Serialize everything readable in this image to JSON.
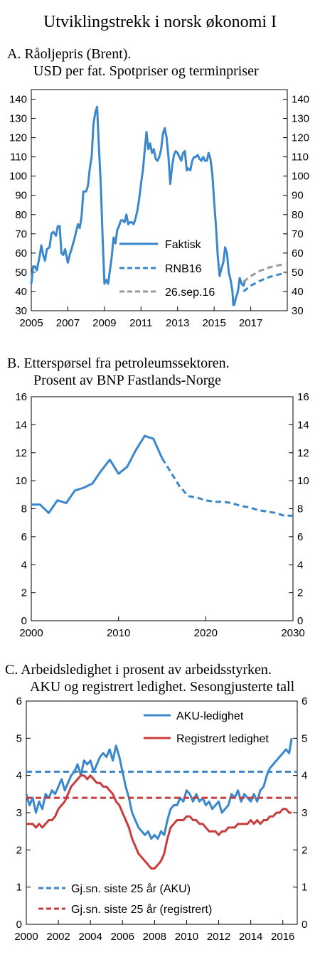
{
  "figure": {
    "title": "Utviklingstrekk i norsk økonomi I"
  },
  "colors": {
    "blue": "#3a87cc",
    "red": "#c83c3c",
    "gray": "#9a9a9a"
  },
  "chart_data": [
    {
      "id": "A",
      "type": "line",
      "title_line1": "A.  Råoljepris (Brent).",
      "title_line2": "USD per fat. Spotpriser og terminpriser",
      "xlim": [
        2005,
        2019
      ],
      "ylim": [
        30,
        145
      ],
      "xticks": [
        2005,
        2007,
        2009,
        2011,
        2013,
        2015,
        2017
      ],
      "yticks": [
        30,
        40,
        50,
        60,
        70,
        80,
        90,
        100,
        110,
        120,
        130,
        140
      ],
      "legend_placement": "bottom-right",
      "series": [
        {
          "name": "Faktisk",
          "style": "solid",
          "color": "#3a87cc",
          "x": [
            2005.0,
            2005.1,
            2005.2,
            2005.3,
            2005.45,
            2005.55,
            2005.65,
            2005.75,
            2005.85,
            2006.0,
            2006.1,
            2006.2,
            2006.35,
            2006.45,
            2006.55,
            2006.65,
            2006.75,
            2006.85,
            2007.0,
            2007.1,
            2007.2,
            2007.35,
            2007.45,
            2007.55,
            2007.65,
            2007.75,
            2007.85,
            2008.0,
            2008.1,
            2008.2,
            2008.3,
            2008.4,
            2008.5,
            2008.6,
            2008.7,
            2008.8,
            2008.9,
            2009.0,
            2009.1,
            2009.2,
            2009.3,
            2009.4,
            2009.5,
            2009.6,
            2009.7,
            2009.8,
            2009.9,
            2010.0,
            2010.1,
            2010.2,
            2010.3,
            2010.4,
            2010.5,
            2010.6,
            2010.7,
            2010.8,
            2010.9,
            2011.0,
            2011.1,
            2011.2,
            2011.3,
            2011.4,
            2011.5,
            2011.6,
            2011.7,
            2011.8,
            2011.9,
            2012.0,
            2012.1,
            2012.2,
            2012.3,
            2012.4,
            2012.5,
            2012.6,
            2012.7,
            2012.8,
            2012.9,
            2013.0,
            2013.1,
            2013.2,
            2013.3,
            2013.4,
            2013.5,
            2013.6,
            2013.7,
            2013.8,
            2013.9,
            2014.0,
            2014.1,
            2014.2,
            2014.3,
            2014.4,
            2014.5,
            2014.6,
            2014.7,
            2014.8,
            2014.9,
            2015.0,
            2015.1,
            2015.2,
            2015.3,
            2015.4,
            2015.5,
            2015.6,
            2015.7,
            2015.8,
            2015.9,
            2016.0,
            2016.05,
            2016.1,
            2016.2,
            2016.3,
            2016.4,
            2016.5,
            2016.6,
            2016.7
          ],
          "y": [
            44,
            53,
            53,
            51,
            58,
            64,
            59,
            56,
            62,
            63,
            70,
            71,
            69,
            74,
            74,
            60,
            59,
            62,
            55,
            59,
            62,
            67,
            71,
            75,
            73,
            79,
            92,
            92,
            95,
            104,
            110,
            127,
            133,
            136,
            115,
            96,
            68,
            44,
            46,
            44,
            51,
            58,
            68,
            65,
            72,
            74,
            77,
            77,
            76,
            80,
            75,
            76,
            76,
            75,
            78,
            82,
            88,
            96,
            103,
            113,
            123,
            114,
            117,
            112,
            114,
            109,
            108,
            110,
            114,
            122,
            125,
            120,
            110,
            96,
            105,
            111,
            113,
            112,
            110,
            108,
            112,
            113,
            103,
            104,
            103,
            108,
            110,
            110,
            111,
            109,
            108,
            110,
            108,
            108,
            112,
            109,
            101,
            87,
            74,
            58,
            48,
            52,
            55,
            63,
            60,
            50,
            46,
            40,
            33,
            33,
            37,
            40,
            47,
            44,
            43,
            46
          ],
          "faktisk_override": true
        },
        {
          "name": "RNB16",
          "style": "dashed",
          "color": "#3a87cc",
          "x": [
            2016.6,
            2017.0,
            2017.5,
            2018.0,
            2018.5,
            2018.9
          ],
          "y": [
            40,
            43,
            45.5,
            47.5,
            48.8,
            49.5
          ]
        },
        {
          "name": "26.sep.16",
          "style": "dashed",
          "color": "#9a9a9a",
          "x": [
            2016.6,
            2017.0,
            2017.5,
            2018.0,
            2018.5,
            2018.9
          ],
          "y": [
            45,
            48,
            50.7,
            52.5,
            53.6,
            54.3
          ]
        }
      ]
    },
    {
      "id": "B",
      "type": "line",
      "title_line1": "B.  Etterspørsel fra petroleumssektoren.",
      "title_line2": "Prosent av BNP Fastlands-Norge",
      "xlim": [
        2000,
        2030
      ],
      "ylim": [
        0,
        16
      ],
      "xticks": [
        2000,
        2010,
        2020,
        2030
      ],
      "yticks": [
        0,
        2,
        4,
        6,
        8,
        10,
        12,
        14,
        16
      ],
      "series": [
        {
          "name": "",
          "style": "solid",
          "color": "#3a87cc",
          "x": [
            2000,
            2001,
            2002,
            2003,
            2004,
            2005,
            2006,
            2007,
            2008,
            2009,
            2010,
            2011,
            2012,
            2013,
            2014,
            2015
          ],
          "y": [
            8.3,
            8.3,
            7.7,
            8.6,
            8.4,
            9.3,
            9.5,
            9.8,
            10.7,
            11.5,
            10.5,
            11.0,
            12.2,
            13.2,
            13.0,
            11.6
          ]
        },
        {
          "name": "",
          "style": "dashed",
          "color": "#3a87cc",
          "x": [
            2015,
            2016,
            2017,
            2018,
            2019,
            2020,
            2021,
            2022,
            2023,
            2024,
            2025,
            2026,
            2027,
            2028,
            2029,
            2030
          ],
          "y": [
            11.6,
            10.6,
            9.6,
            8.9,
            8.8,
            8.6,
            8.5,
            8.5,
            8.4,
            8.2,
            8.1,
            7.9,
            7.8,
            7.7,
            7.5,
            7.5
          ]
        }
      ]
    },
    {
      "id": "C",
      "type": "line",
      "title_line1": "C.  Arbeidsledighet i prosent av arbeidsstyrken.",
      "title_line2": "AKU og registrert ledighet. Sesongjusterte tall",
      "xlim": [
        2000,
        2016.9
      ],
      "ylim": [
        0,
        6
      ],
      "xticks": [
        2000,
        2002,
        2004,
        2006,
        2008,
        2010,
        2012,
        2014,
        2016
      ],
      "yticks": [
        0,
        1,
        2,
        3,
        4,
        5,
        6
      ],
      "legend_placement": "top-right and bottom-left",
      "series": [
        {
          "name": "AKU-ledighet",
          "style": "solid",
          "color": "#3a87cc",
          "x": [
            2000.0,
            2000.2,
            2000.4,
            2000.6,
            2000.8,
            2001.0,
            2001.2,
            2001.4,
            2001.6,
            2001.8,
            2002.0,
            2002.2,
            2002.4,
            2002.6,
            2002.8,
            2003.0,
            2003.2,
            2003.4,
            2003.6,
            2003.8,
            2004.0,
            2004.2,
            2004.4,
            2004.6,
            2004.8,
            2005.0,
            2005.2,
            2005.4,
            2005.6,
            2005.8,
            2006.0,
            2006.2,
            2006.4,
            2006.6,
            2006.8,
            2007.0,
            2007.2,
            2007.4,
            2007.6,
            2007.8,
            2008.0,
            2008.2,
            2008.4,
            2008.6,
            2008.8,
            2009.0,
            2009.2,
            2009.4,
            2009.6,
            2009.8,
            2010.0,
            2010.2,
            2010.4,
            2010.6,
            2010.8,
            2011.0,
            2011.2,
            2011.4,
            2011.6,
            2011.8,
            2012.0,
            2012.2,
            2012.4,
            2012.6,
            2012.8,
            2013.0,
            2013.2,
            2013.4,
            2013.6,
            2013.8,
            2014.0,
            2014.2,
            2014.4,
            2014.6,
            2014.8,
            2015.0,
            2015.2,
            2015.4,
            2015.6,
            2015.8,
            2016.0,
            2016.2,
            2016.4,
            2016.55
          ],
          "y": [
            3.5,
            3.2,
            3.4,
            3.0,
            3.3,
            3.1,
            3.5,
            3.4,
            3.6,
            3.5,
            3.7,
            3.9,
            3.6,
            3.8,
            4.0,
            4.1,
            4.3,
            4.0,
            4.4,
            4.3,
            4.4,
            4.1,
            4.3,
            4.5,
            4.6,
            4.5,
            4.7,
            4.4,
            4.8,
            4.5,
            4.1,
            3.7,
            3.4,
            3.0,
            2.8,
            2.6,
            2.5,
            2.4,
            2.5,
            2.3,
            2.4,
            2.3,
            2.5,
            2.4,
            2.8,
            3.1,
            3.2,
            3.2,
            3.4,
            3.3,
            3.6,
            3.5,
            3.3,
            3.5,
            3.3,
            3.4,
            3.2,
            3.3,
            3.1,
            3.2,
            3.3,
            3.0,
            3.1,
            3.2,
            3.5,
            3.4,
            3.6,
            3.3,
            3.5,
            3.4,
            3.3,
            3.5,
            3.3,
            3.6,
            3.7,
            4.0,
            4.2,
            4.3,
            4.4,
            4.5,
            4.6,
            4.7,
            4.6,
            5.0
          ]
        },
        {
          "name": "Registrert ledighet",
          "style": "solid",
          "color": "#c83c3c",
          "x": [
            2000.0,
            2000.2,
            2000.4,
            2000.6,
            2000.8,
            2001.0,
            2001.2,
            2001.4,
            2001.6,
            2001.8,
            2002.0,
            2002.2,
            2002.4,
            2002.6,
            2002.8,
            2003.0,
            2003.2,
            2003.4,
            2003.6,
            2003.8,
            2004.0,
            2004.2,
            2004.4,
            2004.6,
            2004.8,
            2005.0,
            2005.2,
            2005.4,
            2005.6,
            2005.8,
            2006.0,
            2006.2,
            2006.4,
            2006.6,
            2006.8,
            2007.0,
            2007.2,
            2007.4,
            2007.6,
            2007.8,
            2008.0,
            2008.2,
            2008.4,
            2008.6,
            2008.8,
            2009.0,
            2009.2,
            2009.4,
            2009.6,
            2009.8,
            2010.0,
            2010.2,
            2010.4,
            2010.6,
            2010.8,
            2011.0,
            2011.2,
            2011.4,
            2011.6,
            2011.8,
            2012.0,
            2012.2,
            2012.4,
            2012.6,
            2012.8,
            2013.0,
            2013.2,
            2013.4,
            2013.6,
            2013.8,
            2014.0,
            2014.2,
            2014.4,
            2014.6,
            2014.8,
            2015.0,
            2015.2,
            2015.4,
            2015.6,
            2015.8,
            2016.0,
            2016.2,
            2016.4,
            2016.55
          ],
          "y": [
            2.7,
            2.7,
            2.7,
            2.6,
            2.7,
            2.6,
            2.7,
            2.8,
            2.8,
            2.9,
            3.1,
            3.2,
            3.3,
            3.5,
            3.7,
            3.8,
            3.9,
            4.0,
            4.0,
            3.9,
            4.0,
            3.9,
            3.8,
            3.8,
            3.7,
            3.7,
            3.6,
            3.5,
            3.3,
            3.2,
            3.0,
            2.8,
            2.6,
            2.3,
            2.1,
            1.9,
            1.8,
            1.7,
            1.6,
            1.5,
            1.5,
            1.6,
            1.7,
            1.9,
            2.3,
            2.6,
            2.7,
            2.8,
            2.8,
            2.8,
            2.9,
            2.9,
            2.8,
            2.8,
            2.7,
            2.7,
            2.6,
            2.5,
            2.5,
            2.5,
            2.4,
            2.5,
            2.5,
            2.6,
            2.6,
            2.6,
            2.7,
            2.7,
            2.7,
            2.7,
            2.8,
            2.7,
            2.8,
            2.7,
            2.8,
            2.8,
            2.9,
            2.9,
            3.0,
            3.0,
            3.1,
            3.1,
            3.0,
            3.0
          ]
        },
        {
          "name": "Gj.sn. siste 25 år (AKU)",
          "style": "dashed",
          "color": "#3a87cc",
          "x": [
            2000,
            2016.9
          ],
          "y": [
            4.1,
            4.1
          ]
        },
        {
          "name": "Gj.sn. siste 25 år (registrert)",
          "style": "dashed",
          "color": "#c83c3c",
          "x": [
            2000,
            2016.9
          ],
          "y": [
            3.4,
            3.4
          ]
        }
      ]
    }
  ]
}
